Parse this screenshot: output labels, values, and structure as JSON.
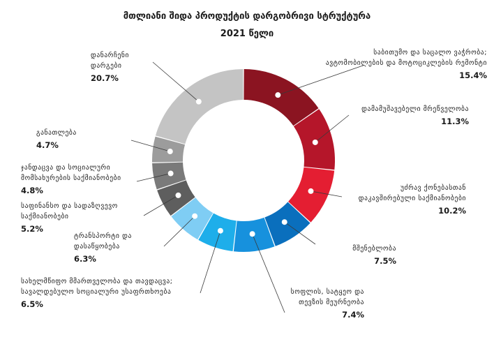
{
  "chart_data": {
    "type": "pie",
    "donut": true,
    "title": "მთლიანი შიდა პროდუქტის დარგობრივი სტრუქტურა",
    "subtitle": "2021 წელი",
    "unit": "%",
    "slices": [
      {
        "label": [
          "საბითუმო და საცალო ვაჭრობა;",
          "ავტომობილების და მოტოციკლების რემონტი"
        ],
        "value": 15.4,
        "value_text": "15.4%",
        "color": "#8b1421"
      },
      {
        "label": [
          "დამამუშავებელი მრეწველობა"
        ],
        "value": 11.3,
        "value_text": "11.3%",
        "color": "#b5162a"
      },
      {
        "label": [
          "უძრავ ქონებასთან",
          "დაკავშირებული საქმიანობები"
        ],
        "value": 10.2,
        "value_text": "10.2%",
        "color": "#e41e32"
      },
      {
        "label": [
          "მშენებლობა"
        ],
        "value": 7.5,
        "value_text": "7.5%",
        "color": "#0a6fbd"
      },
      {
        "label": [
          "სოფლის, სატყეო და",
          "თევზის მეურნეობა"
        ],
        "value": 7.4,
        "value_text": "7.4%",
        "color": "#1791dd"
      },
      {
        "label": [
          "სახელმწიფო მმართველობა და თავდაცვა;",
          "სავალდებულო სოციალური უსაფრთხოება"
        ],
        "value": 6.5,
        "value_text": "6.5%",
        "color": "#1eaeea"
      },
      {
        "label": [
          "ტრანსპორტი და",
          "დასაწყობება"
        ],
        "value": 6.3,
        "value_text": "6.3%",
        "color": "#7fcdf4"
      },
      {
        "label": [
          "საფინანსო და სადაზღვევო",
          "საქმიანობები"
        ],
        "value": 5.2,
        "value_text": "5.2%",
        "color": "#5e5e5e"
      },
      {
        "label": [
          "ჯანდაცვა და სოციალური",
          "მომსახურების საქმიანობები"
        ],
        "value": 4.8,
        "value_text": "4.8%",
        "color": "#7a7a7a"
      },
      {
        "label": [
          "განათლება"
        ],
        "value": 4.7,
        "value_text": "4.7%",
        "color": "#9c9c9c"
      },
      {
        "label": [
          "დანარჩენი",
          "დარგები"
        ],
        "value": 20.7,
        "value_text": "20.7%",
        "color": "#c4c4c4"
      }
    ]
  }
}
